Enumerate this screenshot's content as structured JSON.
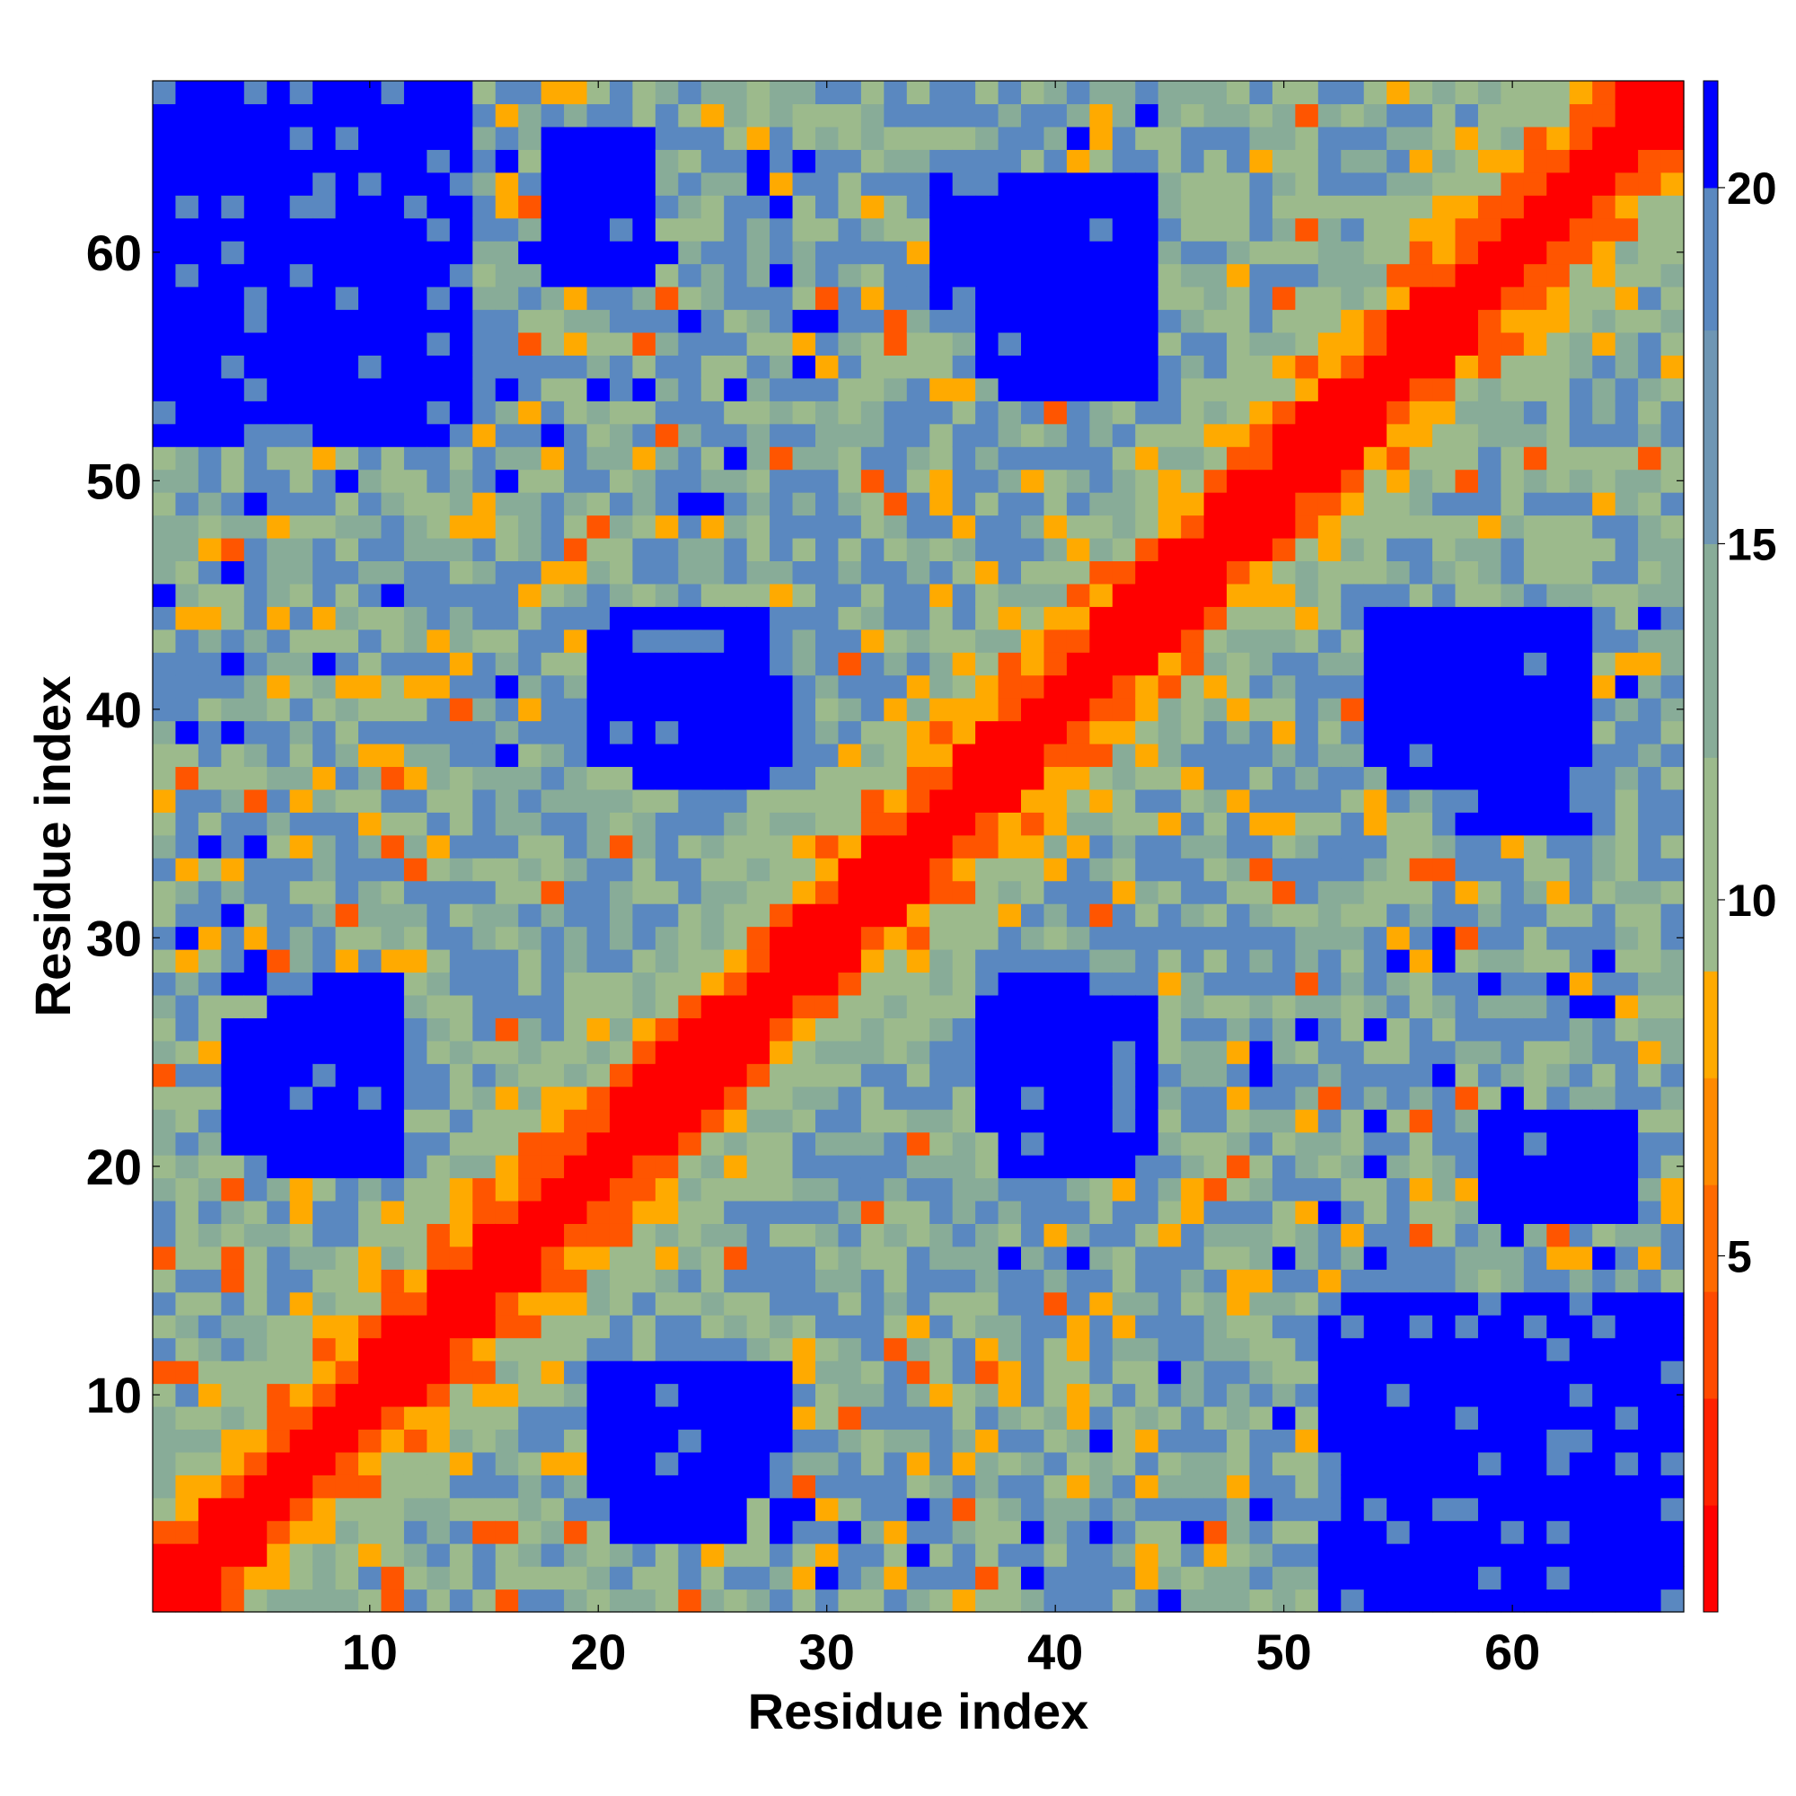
{
  "chart_data": {
    "type": "heatmap",
    "title": "",
    "xlabel": "Residue index",
    "ylabel": "Residue index",
    "n_residues": 67,
    "xlim": [
      0.5,
      67.5
    ],
    "ylim": [
      0.5,
      67.5
    ],
    "x_ticks": [
      10,
      20,
      30,
      40,
      50,
      60
    ],
    "y_ticks": [
      10,
      20,
      30,
      40,
      50,
      60
    ],
    "colorbar": {
      "ticks": [
        5,
        10,
        15,
        20
      ],
      "range": [
        0,
        21.5
      ],
      "bands": [
        {
          "from": 0.0,
          "to": 1.5,
          "color": "#ff0000"
        },
        {
          "from": 1.5,
          "to": 3.0,
          "color": "#ff2200"
        },
        {
          "from": 3.0,
          "to": 4.5,
          "color": "#ff4a00"
        },
        {
          "from": 4.5,
          "to": 6.0,
          "color": "#ff6a00"
        },
        {
          "from": 6.0,
          "to": 7.5,
          "color": "#ff8a00"
        },
        {
          "from": 7.5,
          "to": 9.0,
          "color": "#ffaa00"
        },
        {
          "from": 9.0,
          "to": 12.0,
          "color": "#9cba8c"
        },
        {
          "from": 12.0,
          "to": 15.0,
          "color": "#88ac98"
        },
        {
          "from": 15.0,
          "to": 18.0,
          "color": "#6e96b4"
        },
        {
          "from": 18.0,
          "to": 20.0,
          "color": "#5a88c0"
        },
        {
          "from": 20.0,
          "to": 21.5,
          "color": "#0000ff"
        }
      ]
    },
    "colors": {
      "very_close": "#ff0000",
      "close": "#ff5500",
      "near": "#ffaa00",
      "mid": "#9cba8c",
      "midfar": "#88ac98",
      "far": "#5a88c0",
      "very_far": "#0000ff"
    },
    "note_symmetric": true,
    "far_clusters": [
      {
        "x": [
          2,
          12
        ],
        "y": [
          52,
          67
        ]
      },
      {
        "x": [
          6,
          11
        ],
        "y": [
          20,
          28
        ]
      },
      {
        "x": [
          22,
          27
        ],
        "y": [
          37,
          44
        ]
      },
      {
        "x": [
          21,
          26
        ],
        "y": [
          4,
          11
        ]
      },
      {
        "x": [
          38,
          44
        ],
        "y": [
          54,
          63
        ]
      },
      {
        "x": [
          38,
          44
        ],
        "y": [
          20,
          28
        ]
      },
      {
        "x": [
          55,
          61
        ],
        "y": [
          37,
          44
        ]
      },
      {
        "x": [
          52,
          67
        ],
        "y": [
          1,
          14
        ]
      },
      {
        "x": [
          35,
          38
        ],
        "y": [
          58,
          62
        ]
      },
      {
        "x": [
          59,
          65
        ],
        "y": [
          18,
          22
        ]
      }
    ]
  }
}
